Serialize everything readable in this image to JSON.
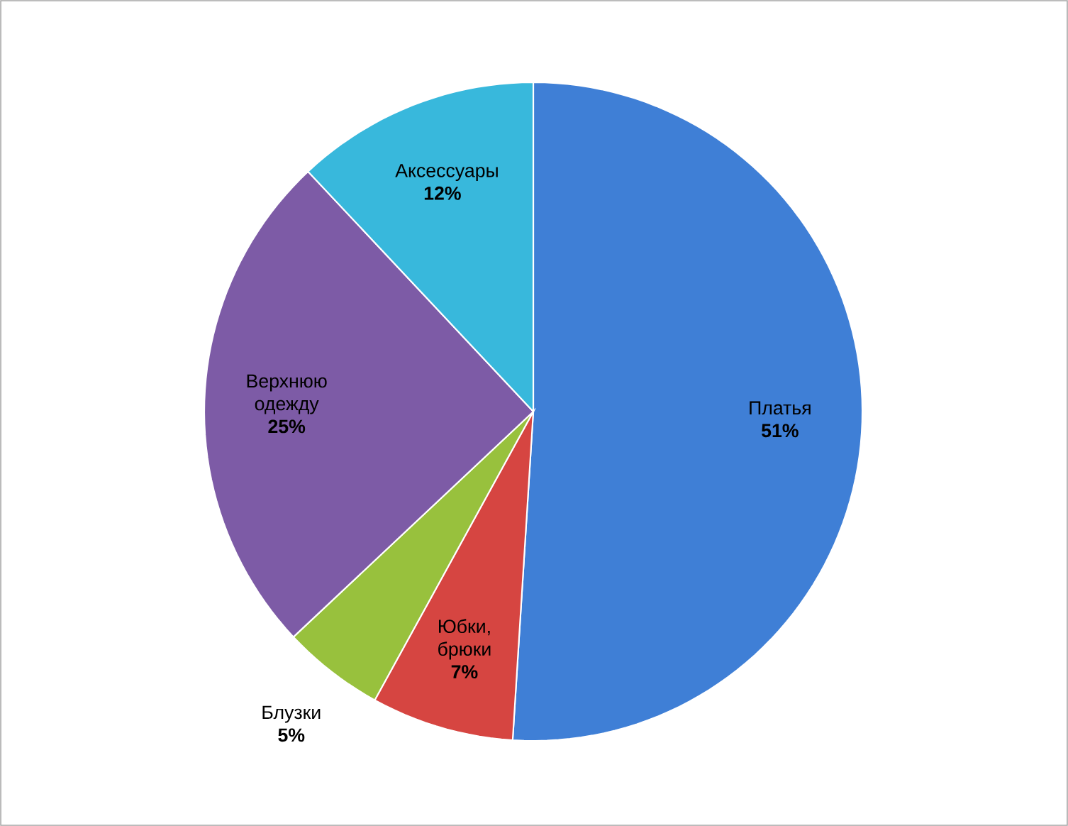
{
  "chart_data": {
    "type": "pie",
    "categories": [
      "Платья",
      "Юбки, брюки",
      "Блузки",
      "Верхнюю одежду",
      "Аксессуары"
    ],
    "values": [
      51,
      7,
      5,
      25,
      12
    ],
    "value_labels": [
      "51%",
      "7%",
      "5%",
      "25%",
      "12%"
    ],
    "colors": [
      "#3f7fd6",
      "#d64541",
      "#98c13d",
      "#7d5ba6",
      "#38b8dc"
    ]
  }
}
